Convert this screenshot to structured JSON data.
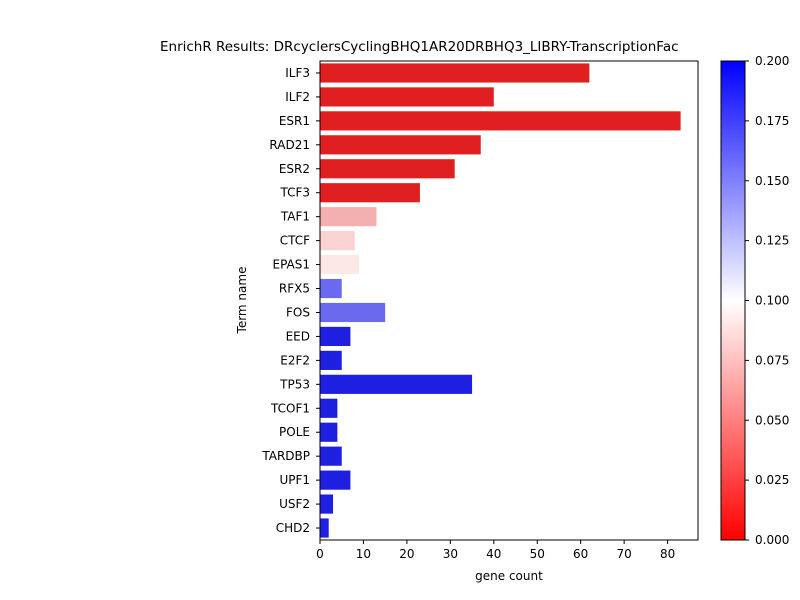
{
  "chart_data": {
    "type": "bar",
    "orientation": "horizontal",
    "title": "EnrichR Results: DRcyclersCyclingBHQ1AR20DRBHQ3_LIBRY-TranscriptionFac",
    "xlabel": "gene count",
    "ylabel": "Term name",
    "xlim": [
      0,
      87
    ],
    "xticks": [
      "0",
      "10",
      "20",
      "30",
      "40",
      "50",
      "60",
      "70",
      "80"
    ],
    "categories": [
      "ILF3",
      "ILF2",
      "ESR1",
      "RAD21",
      "ESR2",
      "TCF3",
      "TAF1",
      "CTCF",
      "EPAS1",
      "RFX5",
      "FOS",
      "EED",
      "E2F2",
      "TP53",
      "TCOF1",
      "POLE",
      "TARDBP",
      "UPF1",
      "USF2",
      "CHD2"
    ],
    "values": [
      62,
      40,
      83,
      37,
      31,
      23,
      13,
      8,
      9,
      5,
      15,
      7,
      5,
      35,
      4,
      4,
      5,
      7,
      3,
      2
    ],
    "bar_colors": [
      "#e02020",
      "#e02020",
      "#e02020",
      "#e02020",
      "#e02020",
      "#e02020",
      "#f4b0b0",
      "#fad2d2",
      "#fde8e8",
      "#6a6aee",
      "#6a6aee",
      "#1f1fe2",
      "#1f1fe2",
      "#1f1fe2",
      "#1f1fe2",
      "#1f1fe2",
      "#1f1fe2",
      "#1f1fe2",
      "#1f1fe2",
      "#1f1fe2"
    ],
    "colorbar": {
      "range": [
        0.0,
        0.2
      ],
      "ticks": [
        "0.000",
        "0.025",
        "0.050",
        "0.075",
        "0.100",
        "0.125",
        "0.150",
        "0.175",
        "0.200"
      ],
      "colors": [
        "#ff0000",
        "#ffffff",
        "#0000ff"
      ]
    },
    "grid": false,
    "legend": "none"
  }
}
